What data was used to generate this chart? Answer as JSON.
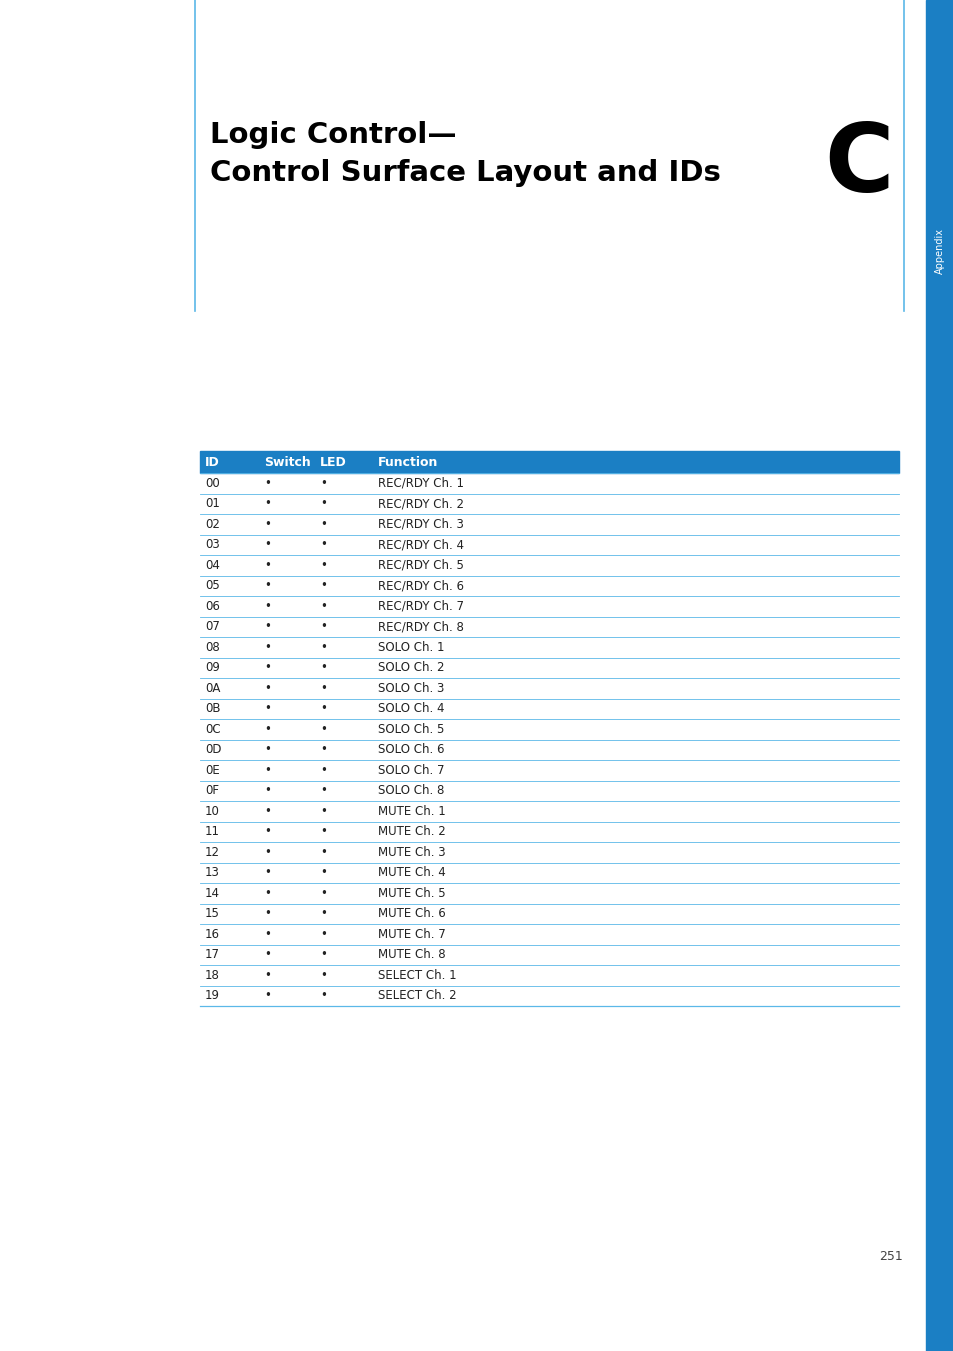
{
  "title_line1": "Logic Control—",
  "title_line2": "Control Surface Layout and IDs",
  "appendix_letter": "C",
  "appendix_label": "Appendix",
  "page_number": "251",
  "header_bg_color": "#1b7fc4",
  "header_text_color": "#ffffff",
  "row_line_color": "#5bb8e8",
  "col_headers": [
    "ID",
    "Switch",
    "LED",
    "Function"
  ],
  "table_data": [
    [
      "00",
      "•",
      "•",
      "REC/RDY Ch. 1"
    ],
    [
      "01",
      "•",
      "•",
      "REC/RDY Ch. 2"
    ],
    [
      "02",
      "•",
      "•",
      "REC/RDY Ch. 3"
    ],
    [
      "03",
      "•",
      "•",
      "REC/RDY Ch. 4"
    ],
    [
      "04",
      "•",
      "•",
      "REC/RDY Ch. 5"
    ],
    [
      "05",
      "•",
      "•",
      "REC/RDY Ch. 6"
    ],
    [
      "06",
      "•",
      "•",
      "REC/RDY Ch. 7"
    ],
    [
      "07",
      "•",
      "•",
      "REC/RDY Ch. 8"
    ],
    [
      "08",
      "•",
      "•",
      "SOLO Ch. 1"
    ],
    [
      "09",
      "•",
      "•",
      "SOLO Ch. 2"
    ],
    [
      "0A",
      "•",
      "•",
      "SOLO Ch. 3"
    ],
    [
      "0B",
      "•",
      "•",
      "SOLO Ch. 4"
    ],
    [
      "0C",
      "•",
      "•",
      "SOLO Ch. 5"
    ],
    [
      "0D",
      "•",
      "•",
      "SOLO Ch. 6"
    ],
    [
      "0E",
      "•",
      "•",
      "SOLO Ch. 7"
    ],
    [
      "0F",
      "•",
      "•",
      "SOLO Ch. 8"
    ],
    [
      "10",
      "•",
      "•",
      "MUTE Ch. 1"
    ],
    [
      "11",
      "•",
      "•",
      "MUTE Ch. 2"
    ],
    [
      "12",
      "•",
      "•",
      "MUTE Ch. 3"
    ],
    [
      "13",
      "•",
      "•",
      "MUTE Ch. 4"
    ],
    [
      "14",
      "•",
      "•",
      "MUTE Ch. 5"
    ],
    [
      "15",
      "•",
      "•",
      "MUTE Ch. 6"
    ],
    [
      "16",
      "•",
      "•",
      "MUTE Ch. 7"
    ],
    [
      "17",
      "•",
      "•",
      "MUTE Ch. 8"
    ],
    [
      "18",
      "•",
      "•",
      "SELECT Ch. 1"
    ],
    [
      "19",
      "•",
      "•",
      "SELECT Ch. 2"
    ]
  ],
  "sidebar_color": "#1b7fc4",
  "page_bg": "#ffffff",
  "title_color": "#000000",
  "body_text_color": "#444444",
  "table_text_color": "#222222",
  "vertical_line_color": "#5bb8e8",
  "title_font_size": 21,
  "header_font_size": 9,
  "row_font_size": 8.5,
  "page_num_font_size": 9,
  "appendix_font_size": 7,
  "c_font_size": 68
}
